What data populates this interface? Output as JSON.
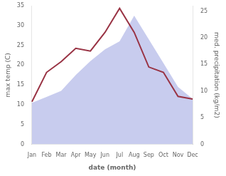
{
  "chart_data": {
    "type": "line",
    "categories": [
      "Jan",
      "Feb",
      "Mar",
      "Apr",
      "May",
      "Jun",
      "Jul",
      "Aug",
      "Sep",
      "Oct",
      "Nov",
      "Dec"
    ],
    "series": [
      {
        "type": "area",
        "color": "#c8ccee",
        "values": [
          10.5,
          12.0,
          13.5,
          17.5,
          21.0,
          24.0,
          26.0,
          32.5,
          26.5,
          20.5,
          14.5,
          11.5
        ]
      },
      {
        "type": "line",
        "color": "#993344",
        "axis": "y2",
        "values": [
          8.0,
          13.5,
          15.5,
          18.0,
          17.5,
          21.0,
          25.5,
          21.0,
          14.5,
          13.5,
          9.0,
          8.5
        ]
      }
    ],
    "xlabel": "date (month)",
    "ylabel": "max temp (C)",
    "y2label": "med. precipitation (kg/m2)",
    "ylim": [
      0,
      35
    ],
    "yticks": [
      0,
      5,
      10,
      15,
      20,
      25,
      30,
      35
    ],
    "y2lim": [
      0,
      26.0
    ],
    "y2ticks": [
      0,
      5,
      10,
      15,
      20,
      25
    ],
    "grid": false
  }
}
